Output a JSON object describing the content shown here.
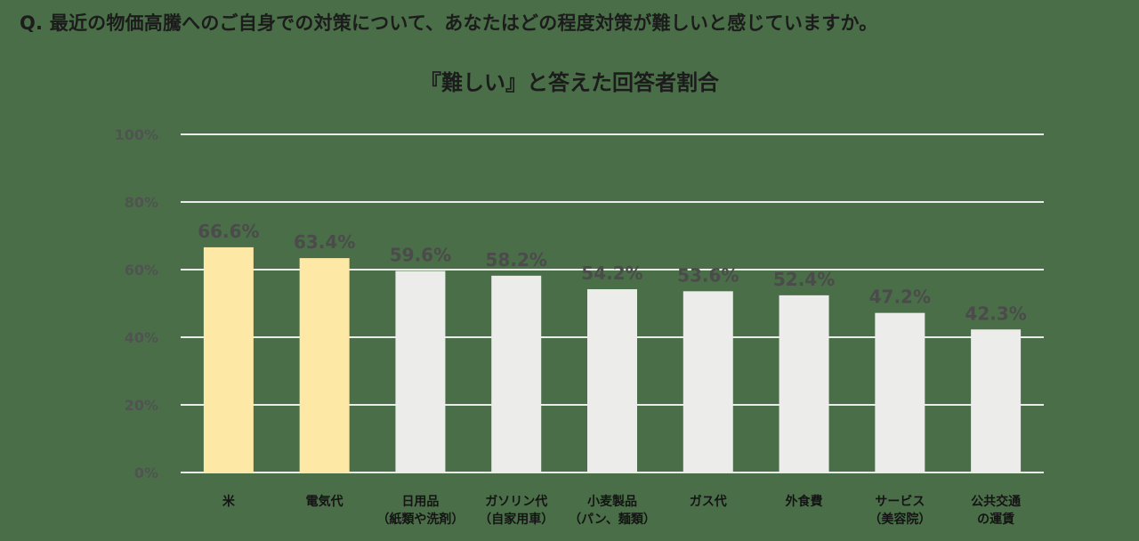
{
  "question": "Q.  最近の物価高騰へのご自身での対策について、あなたはどの程度対策が難しいと感じていますか。",
  "colors": {
    "background": "#4a6e47",
    "gridline": "#e9ece8",
    "highlight_bar": "#fde8a6",
    "normal_bar": "#ececea"
  },
  "chart_data": {
    "type": "bar",
    "title": "『難しい』と答えた回答者割合",
    "categories": [
      [
        "米"
      ],
      [
        "電気代"
      ],
      [
        "日用品",
        "（紙類や洗剤）"
      ],
      [
        "ガソリン代",
        "（自家用車）"
      ],
      [
        "小麦製品",
        "（パン、麺類）"
      ],
      [
        "ガス代"
      ],
      [
        "外食費"
      ],
      [
        "サービス",
        "（美容院）"
      ],
      [
        "公共交通",
        "の運賃"
      ]
    ],
    "values": [
      66.6,
      63.4,
      59.6,
      58.2,
      54.2,
      53.6,
      52.4,
      47.2,
      42.3
    ],
    "data_labels": [
      "66.6%",
      "63.4%",
      "59.6%",
      "58.2%",
      "54.2%",
      "53.6%",
      "52.4%",
      "47.2%",
      "42.3%"
    ],
    "highlighted": [
      true,
      true,
      false,
      false,
      false,
      false,
      false,
      false,
      false
    ],
    "yticks": [
      0,
      20,
      40,
      60,
      80,
      100
    ],
    "ytick_labels": [
      "0%",
      "20%",
      "40%",
      "60%",
      "80%",
      "100%"
    ],
    "ylim": [
      0,
      100
    ],
    "grid": true,
    "legend": "none"
  }
}
